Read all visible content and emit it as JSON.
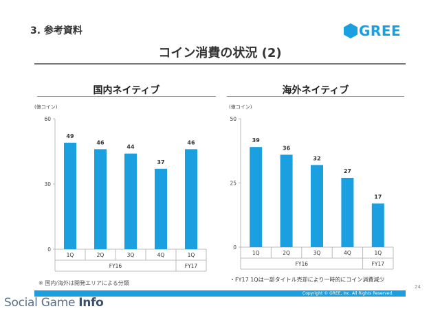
{
  "header": {
    "section": "3. 参考資料",
    "logo_text": "GREE",
    "title": "コイン消費の状況 (2)"
  },
  "colors": {
    "bar": "#1aa0e0",
    "brand": "#1aa0e0"
  },
  "chart_data": [
    {
      "type": "bar",
      "title": "国内ネイティブ",
      "unit_label": "(億コイン)",
      "categories": [
        "1Q",
        "2Q",
        "3Q",
        "4Q",
        "1Q"
      ],
      "groups": [
        {
          "label": "FY16",
          "span": 4
        },
        {
          "label": "FY17",
          "span": 1
        }
      ],
      "values": [
        49,
        46,
        44,
        37,
        46
      ],
      "ylim": [
        0,
        60
      ],
      "yticks": [
        0,
        30,
        60
      ]
    },
    {
      "type": "bar",
      "title": "海外ネイティブ",
      "unit_label": "(億コイン)",
      "categories": [
        "1Q",
        "2Q",
        "3Q",
        "4Q",
        "1Q"
      ],
      "groups": [
        {
          "label": "FY16",
          "span": 4
        },
        {
          "label": "FY17",
          "span": 1
        }
      ],
      "values": [
        39,
        36,
        32,
        27,
        17
      ],
      "ylim": [
        0,
        50
      ],
      "yticks": [
        0,
        25,
        50
      ]
    }
  ],
  "footnotes": {
    "left": "※ 国内/海外は開発エリアによる分類",
    "right": "・FY17 1Qは一部タイトル売却により一時的にコイン消費減少"
  },
  "page_number": "24",
  "copyright": "Copyright © GREE, Inc. All Rights Reserved.",
  "watermark": {
    "part1": "Social Game ",
    "part2": "Info"
  }
}
